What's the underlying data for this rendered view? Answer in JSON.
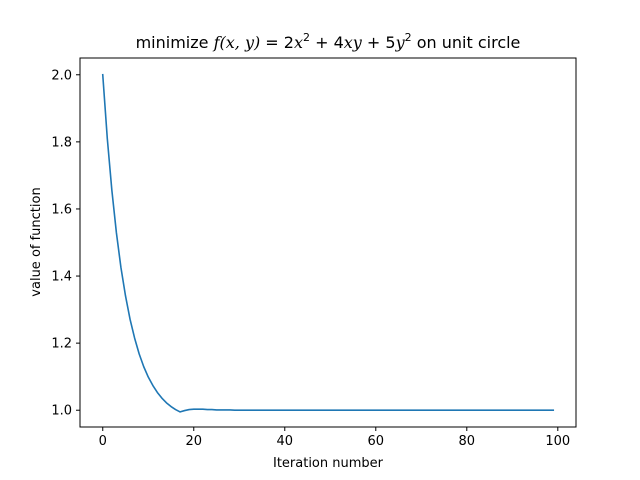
{
  "chart_data": {
    "type": "line",
    "title_parts": {
      "prefix": "minimize ",
      "f": "f",
      "args": "(x, y)",
      "eq": " = 2",
      "x": "x",
      "sup1": "2",
      "mid": " + 4",
      "xy": "xy",
      "plus5": " + 5",
      "y": "y",
      "sup2": "2",
      "suffix": " on unit circle"
    },
    "xlabel": "Iteration number",
    "ylabel": "value of function",
    "xlim": [
      -5,
      104
    ],
    "ylim": [
      0.95,
      2.05
    ],
    "xticks": [
      0,
      20,
      40,
      60,
      80,
      100
    ],
    "xtick_labels": [
      "0",
      "20",
      "40",
      "60",
      "80",
      "100"
    ],
    "yticks": [
      1.0,
      1.2,
      1.4,
      1.6,
      1.8,
      2.0
    ],
    "ytick_labels": [
      "1.0",
      "1.2",
      "1.4",
      "1.6",
      "1.8",
      "2.0"
    ],
    "grid": false,
    "series": [
      {
        "color": "#1f77b4",
        "x": [
          0,
          1,
          2,
          3,
          4,
          5,
          6,
          7,
          8,
          9,
          10,
          11,
          12,
          13,
          14,
          15,
          16,
          17,
          18,
          19,
          20,
          21,
          22,
          23,
          24,
          25,
          26,
          27,
          28,
          29,
          30,
          31,
          32,
          33,
          34,
          35,
          36,
          37,
          38,
          39,
          40,
          41,
          42,
          43,
          44,
          45,
          46,
          47,
          48,
          49,
          50,
          51,
          52,
          53,
          54,
          55,
          56,
          57,
          58,
          59,
          60,
          61,
          62,
          63,
          64,
          65,
          66,
          67,
          68,
          69,
          70,
          71,
          72,
          73,
          74,
          75,
          76,
          77,
          78,
          79,
          80,
          81,
          82,
          83,
          84,
          85,
          86,
          87,
          88,
          89,
          90,
          91,
          92,
          93,
          94,
          95,
          96,
          97,
          98,
          99
        ],
        "y": [
          2.0,
          1.81,
          1.656,
          1.529,
          1.425,
          1.341,
          1.271,
          1.215,
          1.168,
          1.13,
          1.099,
          1.074,
          1.053,
          1.036,
          1.022,
          1.011,
          1.002,
          0.995,
          0.999,
          1.002,
          1.003,
          1.003,
          1.003,
          1.002,
          1.002,
          1.001,
          1.001,
          1.001,
          1.001,
          1.0,
          1.0,
          1.0,
          1.0,
          1.0,
          1.0,
          1.0,
          1.0,
          1.0,
          1.0,
          1.0,
          1.0,
          1.0,
          1.0,
          1.0,
          1.0,
          1.0,
          1.0,
          1.0,
          1.0,
          1.0,
          1.0,
          1.0,
          1.0,
          1.0,
          1.0,
          1.0,
          1.0,
          1.0,
          1.0,
          1.0,
          1.0,
          1.0,
          1.0,
          1.0,
          1.0,
          1.0,
          1.0,
          1.0,
          1.0,
          1.0,
          1.0,
          1.0,
          1.0,
          1.0,
          1.0,
          1.0,
          1.0,
          1.0,
          1.0,
          1.0,
          1.0,
          1.0,
          1.0,
          1.0,
          1.0,
          1.0,
          1.0,
          1.0,
          1.0,
          1.0,
          1.0,
          1.0,
          1.0,
          1.0,
          1.0,
          1.0,
          1.0,
          1.0,
          1.0,
          1.0
        ]
      }
    ]
  }
}
